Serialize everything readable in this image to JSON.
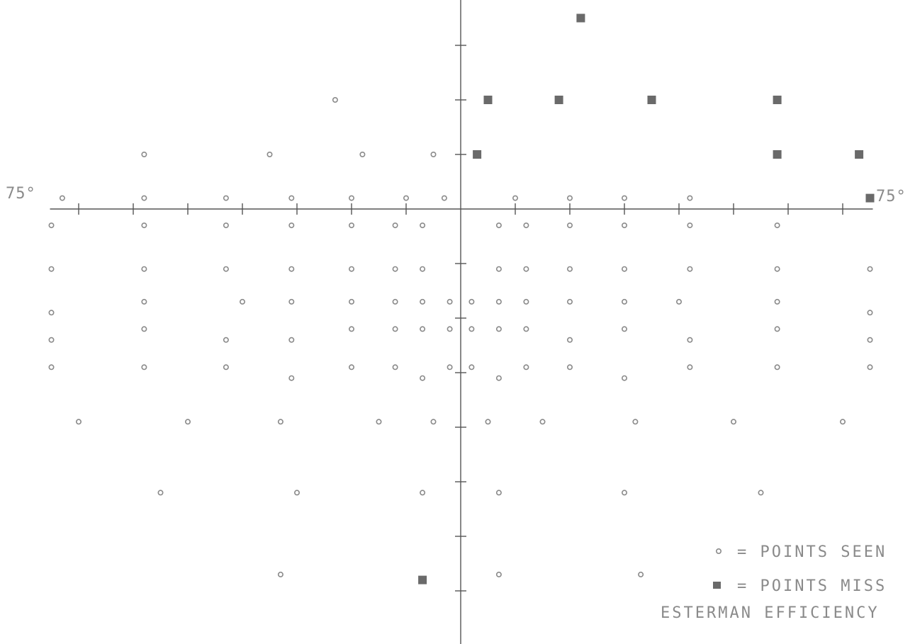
{
  "chart_data": {
    "type": "scatter",
    "axis_labels": {
      "left": "75°",
      "right": "75°"
    },
    "legend": {
      "seen_label": "= POINTS SEEN",
      "missed_label": "= POINTS MISS",
      "efficiency_label": "ESTERMAN EFFICIENCY"
    },
    "colors": {
      "ink": "#8a8a8a",
      "axis": "#555555",
      "missed": "#6a6a6a"
    },
    "seen_points": [
      [
        -23,
        20
      ],
      [
        -58,
        10
      ],
      [
        -35,
        10
      ],
      [
        -18,
        10
      ],
      [
        -5,
        10
      ],
      [
        -73,
        2
      ],
      [
        -58,
        2
      ],
      [
        -43,
        2
      ],
      [
        -31,
        2
      ],
      [
        -20,
        2
      ],
      [
        -10,
        2
      ],
      [
        -3,
        2
      ],
      [
        10,
        2
      ],
      [
        20,
        2
      ],
      [
        30,
        2
      ],
      [
        42,
        2
      ],
      [
        -75,
        -3
      ],
      [
        -58,
        -3
      ],
      [
        -43,
        -3
      ],
      [
        -31,
        -3
      ],
      [
        -20,
        -3
      ],
      [
        -12,
        -3
      ],
      [
        -7,
        -3
      ],
      [
        7,
        -3
      ],
      [
        12,
        -3
      ],
      [
        20,
        -3
      ],
      [
        30,
        -3
      ],
      [
        42,
        -3
      ],
      [
        58,
        -3
      ],
      [
        -75,
        -11
      ],
      [
        -58,
        -11
      ],
      [
        -43,
        -11
      ],
      [
        -31,
        -11
      ],
      [
        -20,
        -11
      ],
      [
        -12,
        -11
      ],
      [
        -7,
        -11
      ],
      [
        7,
        -11
      ],
      [
        12,
        -11
      ],
      [
        20,
        -11
      ],
      [
        30,
        -11
      ],
      [
        42,
        -11
      ],
      [
        58,
        -11
      ],
      [
        75,
        -11
      ],
      [
        -58,
        -17
      ],
      [
        -40,
        -17
      ],
      [
        -31,
        -17
      ],
      [
        -20,
        -17
      ],
      [
        -12,
        -17
      ],
      [
        -7,
        -17
      ],
      [
        -2,
        -17
      ],
      [
        2,
        -17
      ],
      [
        7,
        -17
      ],
      [
        12,
        -17
      ],
      [
        20,
        -17
      ],
      [
        30,
        -17
      ],
      [
        40,
        -17
      ],
      [
        58,
        -17
      ],
      [
        -75,
        -19
      ],
      [
        75,
        -19
      ],
      [
        -58,
        -22
      ],
      [
        -20,
        -22
      ],
      [
        -12,
        -22
      ],
      [
        -7,
        -22
      ],
      [
        -2,
        -22
      ],
      [
        2,
        -22
      ],
      [
        7,
        -22
      ],
      [
        12,
        -22
      ],
      [
        30,
        -22
      ],
      [
        58,
        -22
      ],
      [
        -75,
        -24
      ],
      [
        -43,
        -24
      ],
      [
        -31,
        -24
      ],
      [
        20,
        -24
      ],
      [
        42,
        -24
      ],
      [
        75,
        -24
      ],
      [
        -75,
        -29
      ],
      [
        -58,
        -29
      ],
      [
        -43,
        -29
      ],
      [
        -20,
        -29
      ],
      [
        -12,
        -29
      ],
      [
        -2,
        -29
      ],
      [
        2,
        -29
      ],
      [
        12,
        -29
      ],
      [
        20,
        -29
      ],
      [
        42,
        -29
      ],
      [
        58,
        -29
      ],
      [
        75,
        -29
      ],
      [
        -31,
        -31
      ],
      [
        -7,
        -31
      ],
      [
        7,
        -31
      ],
      [
        30,
        -31
      ],
      [
        -70,
        -39
      ],
      [
        -50,
        -39
      ],
      [
        -33,
        -39
      ],
      [
        -15,
        -39
      ],
      [
        -5,
        -39
      ],
      [
        5,
        -39
      ],
      [
        15,
        -39
      ],
      [
        32,
        -39
      ],
      [
        50,
        -39
      ],
      [
        70,
        -39
      ],
      [
        -55,
        -52
      ],
      [
        -30,
        -52
      ],
      [
        -7,
        -52
      ],
      [
        7,
        -52
      ],
      [
        30,
        -52
      ],
      [
        55,
        -52
      ],
      [
        -33,
        -67
      ],
      [
        7,
        -67
      ],
      [
        33,
        -67
      ]
    ],
    "missed_points": [
      [
        22,
        35
      ],
      [
        5,
        20
      ],
      [
        18,
        20
      ],
      [
        35,
        20
      ],
      [
        58,
        20
      ],
      [
        3,
        10
      ],
      [
        58,
        10
      ],
      [
        73,
        10
      ],
      [
        75,
        2
      ],
      [
        -7,
        -68
      ]
    ],
    "xlim": [
      -75,
      75
    ],
    "ylim": [
      -78,
      38
    ],
    "x_tick_step": 10,
    "y_tick_step": 10,
    "grid": false,
    "legend_position": "bottom-right"
  }
}
